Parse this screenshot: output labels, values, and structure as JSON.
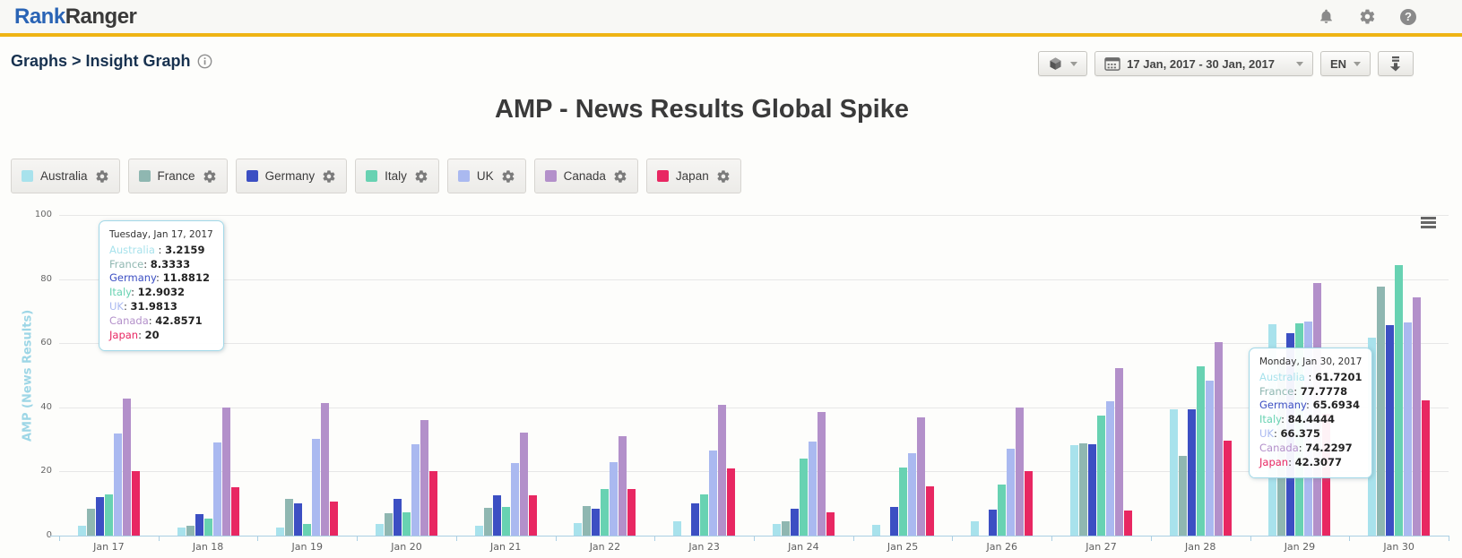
{
  "header": {
    "logo_part1": "Rank",
    "logo_part2": "Ranger",
    "icons": [
      "bell-icon",
      "gear-icon",
      "help-icon"
    ],
    "accent_color": "#efb414"
  },
  "toolbar": {
    "breadcrumb": "Graphs > Insight Graph",
    "icons": [
      "info-icon",
      "package-icon",
      "calendar-icon",
      "download-icon"
    ],
    "date_range": "17 Jan, 2017 - 30 Jan, 2017",
    "language": "EN"
  },
  "title": "AMP - News Results Global Spike",
  "legend": [
    {
      "label": "Australia",
      "color": "#a8e2ec"
    },
    {
      "label": "France",
      "color": "#8fb7b1"
    },
    {
      "label": "Germany",
      "color": "#3c4fc3"
    },
    {
      "label": "Italy",
      "color": "#68d2b2"
    },
    {
      "label": "UK",
      "color": "#aab9f0"
    },
    {
      "label": "Canada",
      "color": "#b390ca"
    },
    {
      "label": "Japan",
      "color": "#e82762"
    }
  ],
  "chart_data": {
    "type": "bar",
    "title": "AMP - News Results Global Spike",
    "xlabel": "",
    "ylabel": "AMP (News Results)",
    "ylim": [
      0,
      100
    ],
    "yticks": [
      0,
      20,
      40,
      60,
      80,
      100
    ],
    "grid": true,
    "legend_position": "top",
    "categories": [
      "Jan 17",
      "Jan 18",
      "Jan 19",
      "Jan 20",
      "Jan 21",
      "Jan 22",
      "Jan 23",
      "Jan 24",
      "Jan 25",
      "Jan 26",
      "Jan 27",
      "Jan 28",
      "Jan 29",
      "Jan 30"
    ],
    "series": [
      {
        "name": "Australia",
        "color": "#a8e2ec",
        "values": [
          3.2159,
          2.5,
          2.5,
          3.6,
          3,
          3.9,
          4.5,
          3.6,
          3.3,
          4.5,
          28.2,
          39.4,
          65.8,
          61.7201
        ]
      },
      {
        "name": "France",
        "color": "#8fb7b1",
        "values": [
          8.3333,
          3,
          11.5,
          7,
          8.6,
          9.2,
          0,
          4.5,
          0,
          0,
          28.8,
          24.9,
          55,
          77.7778
        ]
      },
      {
        "name": "Germany",
        "color": "#3c4fc3",
        "values": [
          11.8812,
          6.7,
          10,
          11.5,
          12.5,
          8.4,
          10,
          8.4,
          9,
          8.1,
          28.5,
          39.4,
          63.2,
          65.6934
        ]
      },
      {
        "name": "Italy",
        "color": "#68d2b2",
        "values": [
          12.9032,
          5.3,
          3.6,
          7.3,
          9,
          14.5,
          12.8,
          24,
          21.2,
          16,
          37.5,
          52.9,
          66.3,
          84.4444
        ]
      },
      {
        "name": "UK",
        "color": "#aab9f0",
        "values": [
          31.9813,
          29,
          30.2,
          28.5,
          22.6,
          22.9,
          26.5,
          29.4,
          25.7,
          27.1,
          41.9,
          48.4,
          66.8,
          66.375
        ]
      },
      {
        "name": "Canada",
        "color": "#b390ca",
        "values": [
          42.8571,
          40,
          41.3,
          36,
          32,
          31,
          40.8,
          38.6,
          36.8,
          40,
          52.3,
          60.4,
          78.9,
          74.2297
        ]
      },
      {
        "name": "Japan",
        "color": "#e82762",
        "values": [
          20,
          15,
          10.7,
          20,
          12.5,
          14.5,
          21,
          7.3,
          15.5,
          20,
          7.8,
          29.7,
          38,
          42.3077
        ]
      }
    ]
  },
  "tooltips": [
    {
      "date": "Tuesday, Jan 17, 2017",
      "rows": [
        {
          "name": "Australia",
          "sep": " : ",
          "value": "3.2159"
        },
        {
          "name": "France",
          "sep": ": ",
          "value": "8.3333"
        },
        {
          "name": "Germany",
          "sep": ": ",
          "value": "11.8812"
        },
        {
          "name": "Italy",
          "sep": ": ",
          "value": "12.9032"
        },
        {
          "name": "UK",
          "sep": ": ",
          "value": "31.9813"
        },
        {
          "name": "Canada",
          "sep": ": ",
          "value": "42.8571"
        },
        {
          "name": "Japan",
          "sep": ": ",
          "value": "20"
        }
      ]
    },
    {
      "date": "Monday, Jan 30, 2017",
      "rows": [
        {
          "name": "Australia",
          "sep": " : ",
          "value": "61.7201"
        },
        {
          "name": "France",
          "sep": ": ",
          "value": "77.7778"
        },
        {
          "name": "Germany",
          "sep": ": ",
          "value": "65.6934"
        },
        {
          "name": "Italy",
          "sep": ": ",
          "value": "84.4444"
        },
        {
          "name": "UK",
          "sep": ": ",
          "value": "66.375"
        },
        {
          "name": "Canada",
          "sep": ": ",
          "value": "74.2297"
        },
        {
          "name": "Japan",
          "sep": ": ",
          "value": "42.3077"
        }
      ]
    }
  ]
}
